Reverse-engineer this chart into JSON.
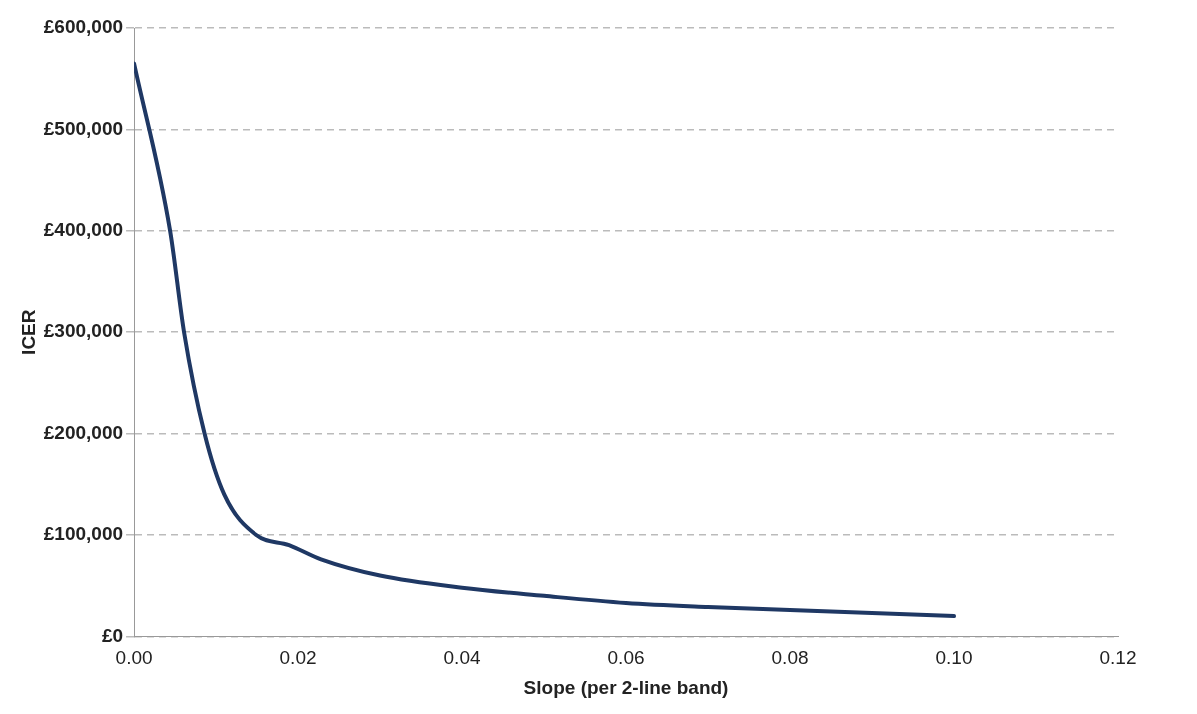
{
  "chart_data": {
    "type": "line",
    "xlabel": "Slope (per 2-line band)",
    "ylabel": "ICER",
    "x": [
      0,
      0.0044,
      0.0061,
      0.0086,
      0.011,
      0.0149,
      0.0189,
      0.0228,
      0.03,
      0.04,
      0.05,
      0.06,
      0.07,
      0.08,
      0.09,
      0.1
    ],
    "series": [
      {
        "color": "#1f3864",
        "values": [
          565000,
          400000,
          300000,
          200000,
          140000,
          100000,
          90000,
          76000,
          60000,
          48000,
          40000,
          33000,
          29000,
          26000,
          23000,
          20000
        ]
      }
    ],
    "xlim": [
      0,
      0.12
    ],
    "xticks": [
      {
        "value": 0,
        "label": "0.00"
      },
      {
        "value": 0.02,
        "label": "0.02"
      },
      {
        "value": 0.04,
        "label": "0.04"
      },
      {
        "value": 0.06,
        "label": "0.06"
      },
      {
        "value": 0.08,
        "label": "0.08"
      },
      {
        "value": 0.1,
        "label": "0.10"
      },
      {
        "value": 0.12,
        "label": "0.12"
      }
    ],
    "ylim": [
      0,
      600000
    ],
    "yticks": [
      {
        "value": 0,
        "label": "£0"
      },
      {
        "value": 100000,
        "label": "£100,000"
      },
      {
        "value": 200000,
        "label": "£200,000"
      },
      {
        "value": 300000,
        "label": "£300,000"
      },
      {
        "value": 400000,
        "label": "£400,000"
      },
      {
        "value": 500000,
        "label": "£500,000"
      },
      {
        "value": 600000,
        "label": "£600,000"
      }
    ],
    "grid": "y",
    "legend": false,
    "marker": "none",
    "line_style": "solid"
  }
}
